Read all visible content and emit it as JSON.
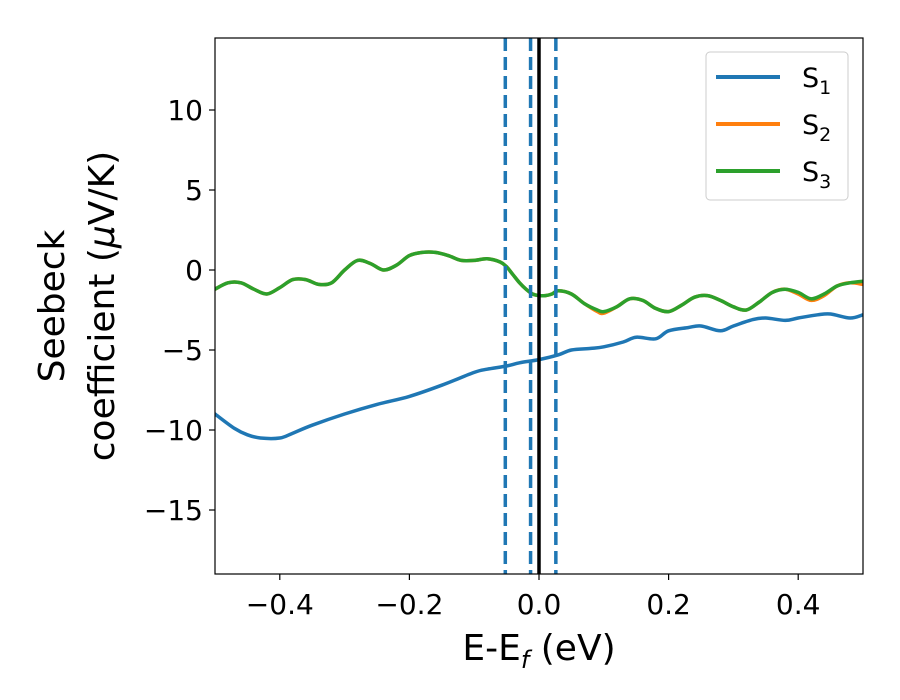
{
  "chart_data": {
    "type": "line",
    "xlabel": {
      "main": "E-E",
      "sub": "f",
      "unit": " (eV)"
    },
    "ylabel": {
      "line1": "Seebeck",
      "line2_prefix": "coefficient  (",
      "mu": "μ",
      "line2_suffix": "V/K)"
    },
    "xlim": [
      -0.5,
      0.5
    ],
    "ylim": [
      -19,
      14.5
    ],
    "xticks": [
      -0.4,
      -0.2,
      0.0,
      0.2,
      0.4
    ],
    "xtick_labels": [
      "−0.4",
      "−0.2",
      "0.0",
      "0.2",
      "0.4"
    ],
    "yticks": [
      -15,
      -10,
      -5,
      0,
      5,
      10
    ],
    "ytick_labels": [
      "−15",
      "−10",
      "−5",
      "0",
      "5",
      "10"
    ],
    "grid": false,
    "legend_position": "top-right",
    "vlines": [
      {
        "x": -0.052,
        "style": "dashed",
        "color": "#1f77b4"
      },
      {
        "x": -0.013,
        "style": "dashed",
        "color": "#1f77b4"
      },
      {
        "x": 0.026,
        "style": "dashed",
        "color": "#1f77b4"
      },
      {
        "x": 0.0,
        "style": "solid",
        "color": "#000000"
      }
    ],
    "series": [
      {
        "name": "S",
        "sub": "1",
        "color": "#1f77b4",
        "x": [
          -0.5,
          -0.47,
          -0.45,
          -0.43,
          -0.4,
          -0.38,
          -0.35,
          -0.3,
          -0.25,
          -0.2,
          -0.15,
          -0.1,
          -0.08,
          -0.05,
          -0.03,
          0.0,
          0.03,
          0.05,
          0.08,
          0.1,
          0.13,
          0.15,
          0.18,
          0.2,
          0.23,
          0.25,
          0.28,
          0.3,
          0.33,
          0.35,
          0.38,
          0.4,
          0.43,
          0.45,
          0.48,
          0.5
        ],
        "y": [
          -9.0,
          -9.9,
          -10.3,
          -10.5,
          -10.5,
          -10.2,
          -9.7,
          -9.0,
          -8.4,
          -7.9,
          -7.2,
          -6.4,
          -6.2,
          -6.0,
          -5.8,
          -5.6,
          -5.3,
          -5.0,
          -4.9,
          -4.8,
          -4.5,
          -4.2,
          -4.3,
          -3.8,
          -3.6,
          -3.5,
          -3.8,
          -3.5,
          -3.1,
          -3.0,
          -3.15,
          -3.0,
          -2.8,
          -2.75,
          -3.0,
          -2.8
        ]
      },
      {
        "name": "S",
        "sub": "2",
        "color": "#ff7f0e",
        "x": [
          -0.5,
          -0.48,
          -0.46,
          -0.44,
          -0.42,
          -0.4,
          -0.38,
          -0.36,
          -0.34,
          -0.32,
          -0.3,
          -0.28,
          -0.26,
          -0.24,
          -0.22,
          -0.2,
          -0.18,
          -0.16,
          -0.14,
          -0.12,
          -0.1,
          -0.08,
          -0.06,
          -0.05,
          -0.04,
          -0.03,
          -0.02,
          -0.01,
          0.0,
          0.01,
          0.02,
          0.03,
          0.05,
          0.07,
          0.09,
          0.1,
          0.12,
          0.14,
          0.16,
          0.18,
          0.2,
          0.22,
          0.24,
          0.26,
          0.28,
          0.3,
          0.32,
          0.34,
          0.36,
          0.38,
          0.4,
          0.42,
          0.44,
          0.46,
          0.48,
          0.5
        ],
        "y": [
          -1.2,
          -0.8,
          -0.8,
          -1.2,
          -1.5,
          -1.1,
          -0.6,
          -0.6,
          -0.9,
          -0.8,
          0.0,
          0.6,
          0.4,
          0.0,
          0.3,
          0.9,
          1.1,
          1.1,
          0.9,
          0.6,
          0.6,
          0.7,
          0.5,
          0.2,
          -0.3,
          -0.8,
          -1.2,
          -1.5,
          -1.6,
          -1.6,
          -1.5,
          -1.3,
          -1.5,
          -2.1,
          -2.6,
          -2.7,
          -2.3,
          -1.8,
          -1.9,
          -2.4,
          -2.6,
          -2.2,
          -1.7,
          -1.6,
          -1.9,
          -2.3,
          -2.5,
          -2.0,
          -1.4,
          -1.2,
          -1.5,
          -1.9,
          -1.6,
          -1.0,
          -0.8,
          -0.9
        ]
      },
      {
        "name": "S",
        "sub": "3",
        "color": "#2ca02c",
        "x": [
          -0.5,
          -0.48,
          -0.46,
          -0.44,
          -0.42,
          -0.4,
          -0.38,
          -0.36,
          -0.34,
          -0.32,
          -0.3,
          -0.28,
          -0.26,
          -0.24,
          -0.22,
          -0.2,
          -0.18,
          -0.16,
          -0.14,
          -0.12,
          -0.1,
          -0.08,
          -0.06,
          -0.05,
          -0.04,
          -0.03,
          -0.02,
          -0.01,
          0.0,
          0.01,
          0.02,
          0.03,
          0.05,
          0.07,
          0.09,
          0.1,
          0.12,
          0.14,
          0.16,
          0.18,
          0.2,
          0.22,
          0.24,
          0.26,
          0.28,
          0.3,
          0.32,
          0.34,
          0.36,
          0.38,
          0.4,
          0.42,
          0.44,
          0.46,
          0.48,
          0.5
        ],
        "y": [
          -1.2,
          -0.8,
          -0.8,
          -1.2,
          -1.5,
          -1.1,
          -0.6,
          -0.6,
          -0.9,
          -0.8,
          0.0,
          0.6,
          0.4,
          0.0,
          0.3,
          0.9,
          1.1,
          1.1,
          0.9,
          0.6,
          0.6,
          0.7,
          0.5,
          0.2,
          -0.3,
          -0.8,
          -1.2,
          -1.5,
          -1.6,
          -1.6,
          -1.5,
          -1.3,
          -1.5,
          -2.1,
          -2.5,
          -2.6,
          -2.3,
          -1.8,
          -1.9,
          -2.4,
          -2.6,
          -2.2,
          -1.7,
          -1.6,
          -1.9,
          -2.3,
          -2.5,
          -2.0,
          -1.4,
          -1.2,
          -1.4,
          -1.8,
          -1.5,
          -1.0,
          -0.8,
          -0.7
        ]
      }
    ]
  }
}
